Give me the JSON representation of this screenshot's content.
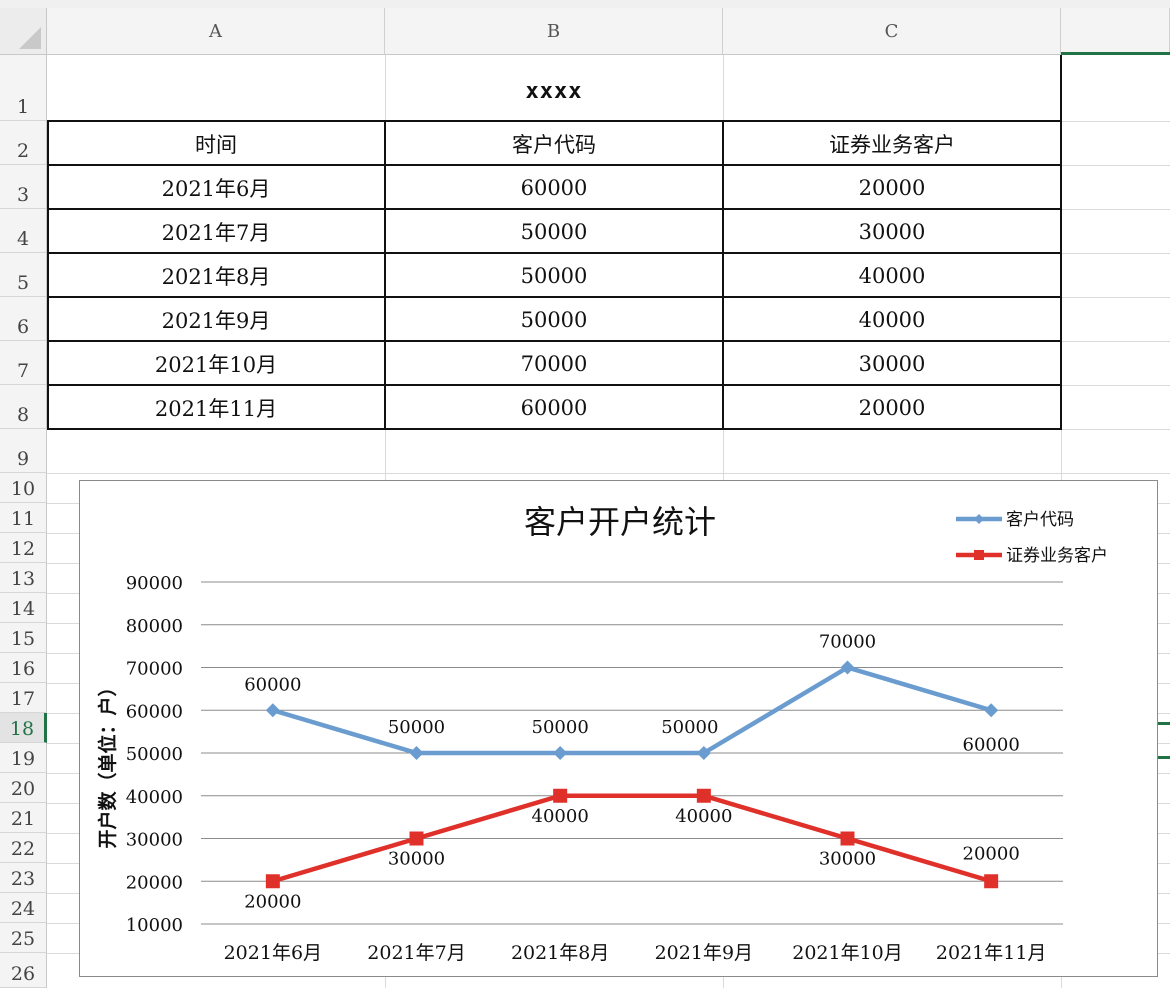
{
  "columns": [
    "A",
    "B",
    "C"
  ],
  "rows": [
    "1",
    "2",
    "3",
    "4",
    "5",
    "6",
    "7",
    "8",
    "9",
    "10",
    "11",
    "12",
    "13",
    "14",
    "15",
    "16",
    "17",
    "18",
    "19",
    "20",
    "21",
    "22",
    "23",
    "24",
    "25",
    "26"
  ],
  "selected_row": "18",
  "table": {
    "title": "xxxx",
    "headers": [
      "时间",
      "客户代码",
      "证券业务客户"
    ],
    "rows": [
      [
        "2021年6月",
        "60000",
        "20000"
      ],
      [
        "2021年7月",
        "50000",
        "30000"
      ],
      [
        "2021年8月",
        "50000",
        "40000"
      ],
      [
        "2021年9月",
        "50000",
        "40000"
      ],
      [
        "2021年10月",
        "70000",
        "30000"
      ],
      [
        "2021年11月",
        "60000",
        "20000"
      ]
    ]
  },
  "chart_data": {
    "type": "line",
    "title": "客户开户统计",
    "ylabel": "开户数（单位：户）",
    "xlabel": "",
    "categories": [
      "2021年6月",
      "2021年7月",
      "2021年8月",
      "2021年9月",
      "2021年10月",
      "2021年11月"
    ],
    "ylim": [
      10000,
      90000
    ],
    "yticks": [
      "10000",
      "20000",
      "30000",
      "40000",
      "50000",
      "60000",
      "70000",
      "80000",
      "90000"
    ],
    "grid": true,
    "legend_position": "top-right",
    "series": [
      {
        "name": "客户代码",
        "values": [
          60000,
          50000,
          50000,
          50000,
          70000,
          60000
        ],
        "color": "#6a9ccf",
        "marker": "diamond",
        "labels": [
          "60000",
          "50000",
          "50000",
          "50000",
          "70000",
          "60000"
        ]
      },
      {
        "name": "证券业务客户",
        "values": [
          20000,
          30000,
          40000,
          40000,
          30000,
          20000
        ],
        "color": "#e0302a",
        "marker": "square",
        "labels": [
          "20000",
          "30000",
          "40000",
          "40000",
          "30000",
          "20000"
        ]
      }
    ]
  }
}
